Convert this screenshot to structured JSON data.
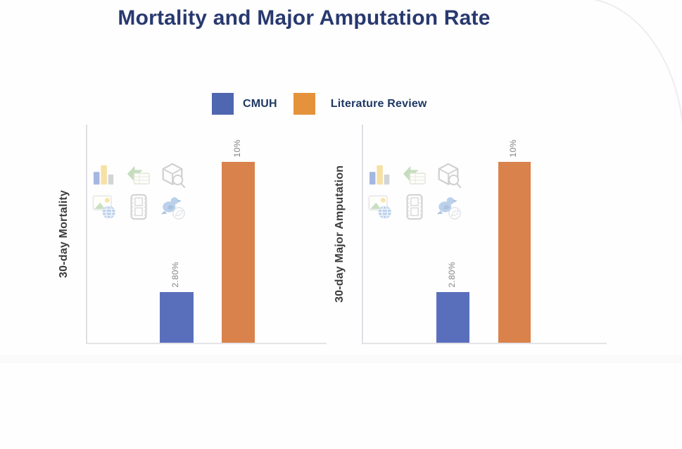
{
  "slide": {
    "title": "Mortality and Major Amputation Rate",
    "title_color": "#28396f"
  },
  "legend": {
    "items": [
      {
        "label": "CMUH",
        "color": "#4f66b0"
      },
      {
        "label": "Literature Review",
        "color": "#e5923c"
      }
    ]
  },
  "placeholder_icons": [
    "bar-chart-icon",
    "smartart-icon",
    "3d-model-icon",
    "stock-image-icon",
    "video-icon",
    "icon-library-icon"
  ],
  "chart_data": [
    {
      "type": "bar",
      "title": "",
      "ylabel": "30-day Mortality",
      "xlabel": "",
      "categories": [
        "CMUH",
        "Literature Review"
      ],
      "values": [
        2.8,
        10
      ],
      "value_labels": [
        "2.80%",
        "10%"
      ],
      "colors": [
        "#5a6fbc",
        "#d9824c"
      ],
      "ylim": [
        0,
        12
      ],
      "grid": false,
      "legend_position": "top",
      "value_label_orientation": "vertical",
      "axis_color": "#dfdfe5"
    },
    {
      "type": "bar",
      "title": "",
      "ylabel": "30-day Major Amputation",
      "xlabel": "",
      "categories": [
        "CMUH",
        "Literature Review"
      ],
      "values": [
        2.8,
        10
      ],
      "value_labels": [
        "2.80%",
        "10%"
      ],
      "colors": [
        "#5a6fbc",
        "#d9824c"
      ],
      "ylim": [
        0,
        12
      ],
      "grid": false,
      "legend_position": "top",
      "value_label_orientation": "vertical",
      "axis_color": "#dfdfe5"
    }
  ]
}
